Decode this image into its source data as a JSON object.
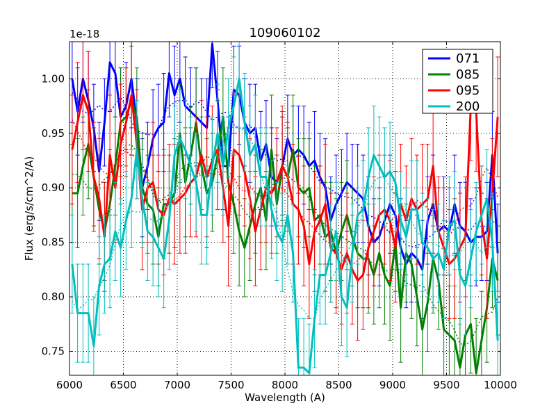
{
  "chart_data": {
    "type": "line",
    "title": "109060102",
    "xlabel": "Wavelength (A)",
    "ylabel": "Flux (erg/s/cm^2/A)",
    "y_offset_label": "1e-18",
    "xlim": [
      6000,
      10000
    ],
    "ylim": [
      0.728,
      1.034
    ],
    "grid": true,
    "legend_position": "top-right",
    "x_ticks": [
      6000,
      6500,
      7000,
      7500,
      8000,
      8500,
      9000,
      9500,
      10000
    ],
    "x_tick_labels": [
      "6000",
      "6500",
      "7000",
      "7500",
      "8000",
      "8500",
      "9000",
      "9500",
      "10000"
    ],
    "y_ticks": [
      0.75,
      0.8,
      0.85,
      0.9,
      0.95,
      1.0
    ],
    "y_tick_labels": [
      "0.75",
      "0.80",
      "0.85",
      "0.90",
      "0.95",
      "1.00"
    ],
    "x": [
      6025,
      6075,
      6125,
      6175,
      6225,
      6275,
      6325,
      6375,
      6425,
      6475,
      6525,
      6575,
      6625,
      6675,
      6725,
      6775,
      6825,
      6875,
      6925,
      6975,
      7025,
      7075,
      7125,
      7175,
      7225,
      7275,
      7325,
      7375,
      7425,
      7475,
      7525,
      7575,
      7625,
      7675,
      7725,
      7775,
      7825,
      7875,
      7925,
      7975,
      8025,
      8075,
      8125,
      8175,
      8225,
      8275,
      8325,
      8375,
      8425,
      8475,
      8525,
      8575,
      8625,
      8675,
      8725,
      8775,
      8825,
      8875,
      8925,
      8975,
      9025,
      9075,
      9125,
      9175,
      9225,
      9275,
      9325,
      9375,
      9425,
      9475,
      9525,
      9575,
      9625,
      9675,
      9725,
      9775,
      9825,
      9875,
      9925,
      9975
    ],
    "series": [
      {
        "name": "071",
        "color": "#0000ff",
        "values": [
          1.0,
          0.97,
          1.0,
          0.98,
          0.955,
          0.915,
          0.96,
          1.015,
          1.005,
          0.965,
          0.975,
          1.0,
          0.96,
          0.9,
          0.92,
          0.945,
          0.955,
          0.96,
          1.005,
          0.985,
          1.0,
          0.975,
          0.97,
          0.965,
          0.96,
          0.955,
          1.032,
          0.98,
          0.92,
          0.92,
          0.99,
          0.985,
          0.96,
          0.95,
          0.955,
          0.925,
          0.94,
          0.91,
          0.905,
          0.92,
          0.945,
          0.93,
          0.935,
          0.93,
          0.92,
          0.925,
          0.91,
          0.9,
          0.87,
          0.885,
          0.895,
          0.905,
          0.9,
          0.895,
          0.89,
          0.865,
          0.85,
          0.855,
          0.87,
          0.885,
          0.875,
          0.845,
          0.83,
          0.84,
          0.835,
          0.825,
          0.87,
          0.885,
          0.86,
          0.865,
          0.86,
          0.885,
          0.865,
          0.86,
          0.85,
          0.855,
          0.855,
          0.86,
          0.93,
          0.84
        ],
        "errors": [
          0.04,
          0.04,
          0.04,
          0.045,
          0.04,
          0.045,
          0.04,
          0.045,
          0.04,
          0.045,
          0.04,
          0.045,
          0.04,
          0.045,
          0.04,
          0.045,
          0.04,
          0.045,
          0.04,
          0.045,
          0.04,
          0.045,
          0.04,
          0.045,
          0.04,
          0.045,
          0.04,
          0.045,
          0.04,
          0.045,
          0.04,
          0.045,
          0.04,
          0.045,
          0.04,
          0.045,
          0.04,
          0.045,
          0.04,
          0.045,
          0.04,
          0.045,
          0.04,
          0.045,
          0.04,
          0.045,
          0.04,
          0.045,
          0.04,
          0.045,
          0.04,
          0.045,
          0.04,
          0.045,
          0.04,
          0.045,
          0.04,
          0.045,
          0.04,
          0.045,
          0.04,
          0.045,
          0.04,
          0.045,
          0.04,
          0.045,
          0.04,
          0.045,
          0.04,
          0.045,
          0.04,
          0.045,
          0.04,
          0.045,
          0.04,
          0.045,
          0.04,
          0.045,
          0.04,
          0.045
        ]
      },
      {
        "name": "085",
        "color": "#008000",
        "values": [
          0.895,
          0.895,
          0.92,
          0.94,
          0.91,
          0.88,
          0.86,
          0.885,
          0.92,
          0.96,
          0.965,
          0.98,
          0.965,
          0.9,
          0.885,
          0.88,
          0.855,
          0.885,
          0.885,
          0.895,
          0.95,
          0.905,
          0.93,
          0.96,
          0.92,
          0.895,
          0.905,
          0.93,
          0.965,
          0.905,
          0.885,
          0.86,
          0.845,
          0.865,
          0.885,
          0.9,
          0.87,
          0.935,
          0.885,
          0.92,
          0.91,
          0.935,
          0.9,
          0.895,
          0.9,
          0.87,
          0.875,
          0.855,
          0.86,
          0.84,
          0.86,
          0.875,
          0.855,
          0.84,
          0.835,
          0.835,
          0.82,
          0.84,
          0.82,
          0.81,
          0.85,
          0.79,
          0.84,
          0.83,
          0.8,
          0.77,
          0.795,
          0.835,
          0.815,
          0.77,
          0.765,
          0.76,
          0.735,
          0.765,
          0.775,
          0.73,
          0.76,
          0.79,
          0.835,
          0.815
        ],
        "errors": [
          0.045,
          0.05,
          0.045,
          0.05,
          0.045,
          0.05,
          0.045,
          0.05,
          0.045,
          0.05,
          0.045,
          0.05,
          0.045,
          0.05,
          0.045,
          0.05,
          0.045,
          0.05,
          0.045,
          0.05,
          0.045,
          0.05,
          0.045,
          0.05,
          0.045,
          0.05,
          0.045,
          0.05,
          0.045,
          0.05,
          0.045,
          0.05,
          0.045,
          0.05,
          0.045,
          0.05,
          0.045,
          0.05,
          0.045,
          0.05,
          0.045,
          0.05,
          0.045,
          0.05,
          0.045,
          0.05,
          0.045,
          0.05,
          0.045,
          0.05,
          0.045,
          0.05,
          0.045,
          0.05,
          0.045,
          0.05,
          0.045,
          0.05,
          0.045,
          0.05,
          0.045,
          0.05,
          0.045,
          0.05,
          0.045,
          0.05,
          0.045,
          0.05,
          0.045,
          0.05,
          0.045,
          0.05,
          0.045,
          0.05,
          0.045,
          0.05,
          0.045,
          0.05,
          0.045,
          0.05
        ]
      },
      {
        "name": "095",
        "color": "#ff0000",
        "values": [
          0.935,
          0.96,
          0.985,
          0.97,
          0.91,
          0.89,
          0.855,
          0.93,
          0.9,
          0.94,
          0.96,
          0.985,
          0.94,
          0.88,
          0.9,
          0.905,
          0.88,
          0.875,
          0.89,
          0.885,
          0.89,
          0.895,
          0.905,
          0.91,
          0.93,
          0.91,
          0.925,
          0.935,
          0.9,
          0.865,
          0.935,
          0.93,
          0.915,
          0.89,
          0.86,
          0.88,
          0.9,
          0.895,
          0.905,
          0.92,
          0.91,
          0.885,
          0.88,
          0.865,
          0.83,
          0.86,
          0.87,
          0.885,
          0.845,
          0.84,
          0.825,
          0.84,
          0.825,
          0.815,
          0.82,
          0.845,
          0.86,
          0.875,
          0.88,
          0.87,
          0.845,
          0.885,
          0.87,
          0.89,
          0.88,
          0.885,
          0.89,
          0.92,
          0.86,
          0.845,
          0.83,
          0.835,
          0.845,
          0.855,
          0.975,
          0.97,
          0.87,
          0.835,
          0.895,
          0.965
        ],
        "errors": [
          0.05,
          0.055,
          0.05,
          0.055,
          0.05,
          0.055,
          0.05,
          0.055,
          0.05,
          0.055,
          0.05,
          0.055,
          0.05,
          0.055,
          0.05,
          0.055,
          0.05,
          0.055,
          0.05,
          0.055,
          0.05,
          0.055,
          0.05,
          0.055,
          0.05,
          0.055,
          0.05,
          0.055,
          0.05,
          0.055,
          0.05,
          0.055,
          0.05,
          0.055,
          0.05,
          0.055,
          0.05,
          0.055,
          0.05,
          0.055,
          0.05,
          0.055,
          0.05,
          0.055,
          0.05,
          0.055,
          0.05,
          0.055,
          0.05,
          0.055,
          0.05,
          0.055,
          0.05,
          0.055,
          0.05,
          0.055,
          0.05,
          0.055,
          0.05,
          0.055,
          0.05,
          0.055,
          0.05,
          0.055,
          0.05,
          0.055,
          0.05,
          0.055,
          0.05,
          0.055,
          0.05,
          0.055,
          0.05,
          0.055,
          0.05,
          0.055,
          0.05,
          0.055,
          0.05,
          0.055
        ]
      },
      {
        "name": "200",
        "color": "#00bfbf",
        "values": [
          0.83,
          0.785,
          0.785,
          0.785,
          0.755,
          0.81,
          0.83,
          0.835,
          0.86,
          0.845,
          0.87,
          0.89,
          0.935,
          0.89,
          0.86,
          0.855,
          0.845,
          0.835,
          0.87,
          0.93,
          0.945,
          0.935,
          0.92,
          0.905,
          0.875,
          0.875,
          0.92,
          0.95,
          0.92,
          0.955,
          0.975,
          1.0,
          0.96,
          0.93,
          0.94,
          0.91,
          0.91,
          0.88,
          0.86,
          0.85,
          0.875,
          0.84,
          0.735,
          0.735,
          0.73,
          0.78,
          0.82,
          0.82,
          0.84,
          0.86,
          0.8,
          0.79,
          0.84,
          0.875,
          0.88,
          0.91,
          0.93,
          0.92,
          0.91,
          0.915,
          0.905,
          0.87,
          0.855,
          0.88,
          0.88,
          0.85,
          0.845,
          0.835,
          0.84,
          0.825,
          0.865,
          0.87,
          0.82,
          0.81,
          0.835,
          0.86,
          0.875,
          0.89,
          0.85,
          0.76
        ],
        "errors": [
          0.045,
          0.045,
          0.045,
          0.045,
          0.045,
          0.045,
          0.045,
          0.045,
          0.045,
          0.045,
          0.045,
          0.045,
          0.045,
          0.045,
          0.045,
          0.045,
          0.045,
          0.045,
          0.045,
          0.045,
          0.045,
          0.045,
          0.045,
          0.045,
          0.045,
          0.045,
          0.045,
          0.045,
          0.045,
          0.045,
          0.045,
          0.045,
          0.045,
          0.045,
          0.045,
          0.045,
          0.045,
          0.045,
          0.045,
          0.045,
          0.045,
          0.045,
          0.045,
          0.045,
          0.045,
          0.045,
          0.045,
          0.045,
          0.045,
          0.045,
          0.045,
          0.045,
          0.045,
          0.045,
          0.045,
          0.045,
          0.045,
          0.045,
          0.045,
          0.045,
          0.045,
          0.045,
          0.045,
          0.045,
          0.045,
          0.045,
          0.045,
          0.045,
          0.045,
          0.045,
          0.045,
          0.045,
          0.045,
          0.045,
          0.045,
          0.045,
          0.045,
          0.045,
          0.045,
          0.045
        ]
      }
    ]
  }
}
